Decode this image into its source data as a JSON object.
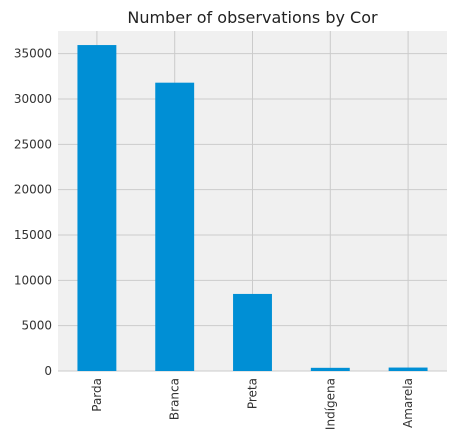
{
  "chart_data": {
    "type": "bar",
    "title": "Number of observations by Cor",
    "xlabel": "",
    "ylabel": "",
    "categories": [
      "Parda",
      "Branca",
      "Preta",
      "Indígena",
      "Amarela"
    ],
    "values": [
      35950,
      31800,
      8500,
      350,
      380
    ],
    "ylim": [
      0,
      37500
    ],
    "yticks": [
      0,
      5000,
      10000,
      15000,
      20000,
      25000,
      30000,
      35000
    ],
    "ytick_labels": [
      "0",
      "5000",
      "10000",
      "15000",
      "20000",
      "25000",
      "30000",
      "35000"
    ],
    "grid": true,
    "legend": "none",
    "colors": {
      "bar": "#008fd5",
      "plot_background": "#f0f0f0",
      "grid": "#cbcbcb"
    }
  }
}
